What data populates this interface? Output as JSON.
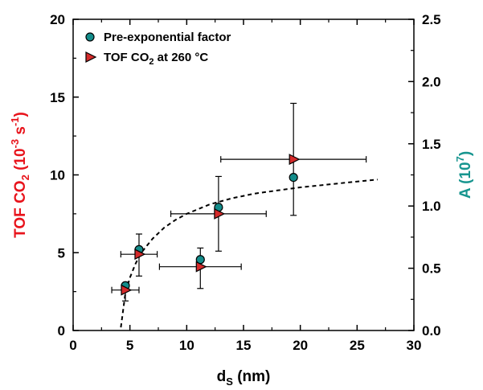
{
  "chart_data": {
    "type": "scatter",
    "x_axis": {
      "label_main": "d",
      "label_sub": "S",
      "label_unit": " (nm)",
      "range": [
        0,
        30
      ],
      "ticks": [
        0,
        5,
        10,
        15,
        20,
        25,
        30
      ],
      "tick_labels": [
        "0",
        "5",
        "10",
        "15",
        "20",
        "25",
        "30"
      ]
    },
    "y_left_axis": {
      "label_pre": "TOF CO",
      "label_sub": "2",
      "label_mid": " (10",
      "label_sup1": "-3",
      "label_mid2": " s",
      "label_sup2": "-1",
      "label_post": ")",
      "range": [
        0,
        20
      ],
      "ticks": [
        0,
        5,
        10,
        15,
        20
      ],
      "tick_labels": [
        "0",
        "5",
        "10",
        "15",
        "20"
      ],
      "color": "#e8141c"
    },
    "y_right_axis": {
      "label_pre": "A (10",
      "label_sup": "7",
      "label_post": ")",
      "range": [
        0,
        2.5
      ],
      "ticks": [
        0,
        0.5,
        1.0,
        1.5,
        2.0,
        2.5
      ],
      "tick_labels": [
        "0.0",
        "0.5",
        "1.0",
        "1.5",
        "2.0",
        "2.5"
      ],
      "color": "#17958f"
    },
    "legend": {
      "placement": "top-left",
      "entries": [
        {
          "label": "Pre-exponential factor",
          "marker": "circle",
          "color": "#138c8a"
        },
        {
          "label_pre": "TOF CO",
          "label_sub": "2",
          "label_post": " at 260 °C",
          "marker": "triangle-right",
          "color": "#d42a2a"
        }
      ]
    },
    "series": [
      {
        "name": "Pre-exponential factor",
        "axis": "right",
        "marker": "circle",
        "color": "#138c8a",
        "x": [
          4.6,
          5.8,
          11.2,
          12.8,
          19.4
        ],
        "y": [
          0.36,
          0.65,
          0.57,
          0.99,
          1.23
        ]
      },
      {
        "name": "TOF CO2 at 260 °C",
        "axis": "left",
        "marker": "triangle-right",
        "color": "#d42a2a",
        "x": [
          4.6,
          5.8,
          11.2,
          12.8,
          19.4
        ],
        "y": [
          2.6,
          4.9,
          4.1,
          7.5,
          11.0
        ],
        "y_err_low": [
          0.7,
          1.4,
          1.4,
          2.4,
          3.6
        ],
        "y_err_high": [
          0.3,
          1.3,
          1.2,
          2.4,
          3.6
        ],
        "x_err": [
          1.2,
          1.6,
          3.6,
          4.2,
          6.4
        ]
      }
    ],
    "fit_curve": {
      "style": "dashed",
      "color": "#000000",
      "x": [
        4.2,
        4.6,
        5.0,
        5.5,
        6.0,
        7.0,
        8.0,
        9.0,
        10.0,
        11.0,
        12.0,
        13.0,
        14.0,
        16.0,
        18.0,
        20.0,
        22.0,
        24.0,
        26.8
      ],
      "y": [
        0.2,
        2.4,
        3.4,
        4.3,
        5.0,
        5.9,
        6.6,
        7.1,
        7.5,
        7.8,
        8.1,
        8.3,
        8.5,
        8.8,
        9.0,
        9.2,
        9.35,
        9.5,
        9.7
      ]
    }
  }
}
